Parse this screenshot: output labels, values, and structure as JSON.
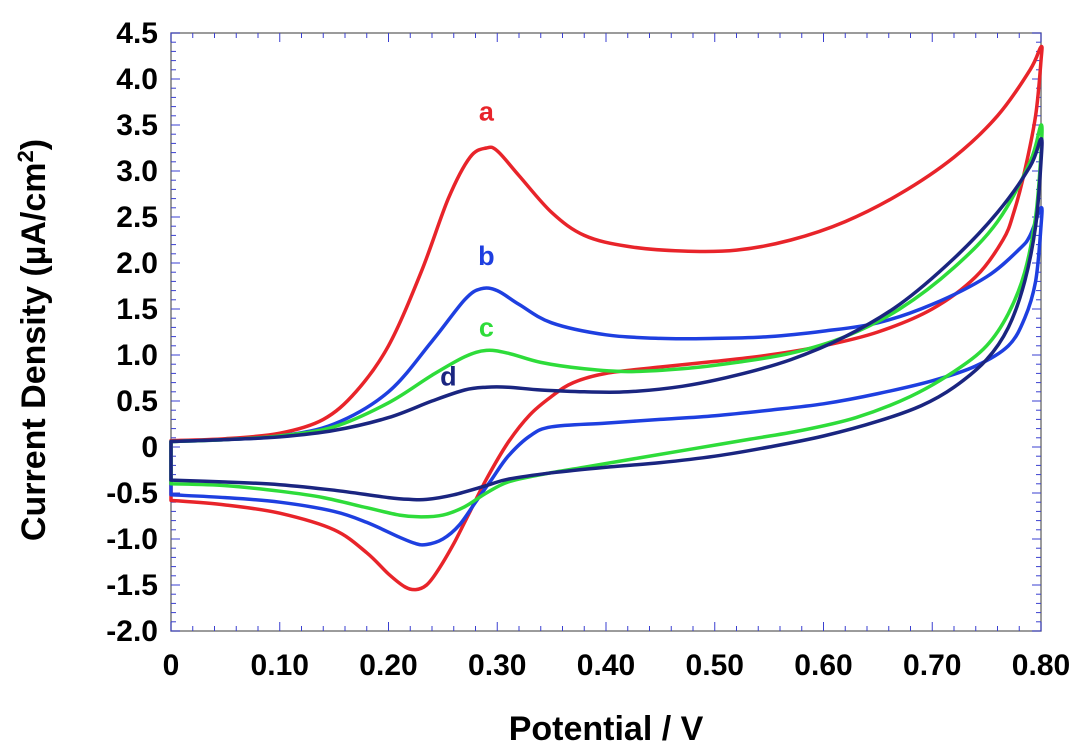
{
  "chart_data": {
    "type": "line",
    "xlabel": "Potential / V",
    "ylabel": "Current Density (µA/cm",
    "ylabel_sup": "2",
    "ylabel_end": ")",
    "xlim": [
      0,
      0.8
    ],
    "ylim": [
      -2.0,
      4.5
    ],
    "xticks": [
      {
        "value": 0,
        "label": "0"
      },
      {
        "value": 0.1,
        "label": "0.10"
      },
      {
        "value": 0.2,
        "label": "0.20"
      },
      {
        "value": 0.3,
        "label": "0.30"
      },
      {
        "value": 0.4,
        "label": "0.40"
      },
      {
        "value": 0.5,
        "label": "0.50"
      },
      {
        "value": 0.6,
        "label": "0.60"
      },
      {
        "value": 0.7,
        "label": "0.70"
      },
      {
        "value": 0.8,
        "label": "0.80"
      }
    ],
    "yticks": [
      {
        "value": 4.5,
        "label": "4.5"
      },
      {
        "value": 4.0,
        "label": "4.0"
      },
      {
        "value": 3.5,
        "label": "3.5"
      },
      {
        "value": 3.0,
        "label": "3.0"
      },
      {
        "value": 2.5,
        "label": "2.5"
      },
      {
        "value": 2.0,
        "label": "2.0"
      },
      {
        "value": 1.5,
        "label": "1.5"
      },
      {
        "value": 1.0,
        "label": "1.0"
      },
      {
        "value": 0.5,
        "label": "0.5"
      },
      {
        "value": 0,
        "label": "0"
      },
      {
        "value": -0.5,
        "label": "-0.5"
      },
      {
        "value": -1.0,
        "label": "-1.0"
      },
      {
        "value": -1.5,
        "label": "-1.5"
      },
      {
        "value": -2.0,
        "label": "-2.0"
      }
    ],
    "grid": false,
    "series": [
      {
        "label": "a",
        "label_pos": [
          0.29,
          3.55
        ],
        "color": "#e8242a",
        "points": [
          [
            0.0,
            0.07
          ],
          [
            0.05,
            0.09
          ],
          [
            0.1,
            0.15
          ],
          [
            0.14,
            0.3
          ],
          [
            0.17,
            0.6
          ],
          [
            0.2,
            1.1
          ],
          [
            0.23,
            1.9
          ],
          [
            0.255,
            2.7
          ],
          [
            0.275,
            3.15
          ],
          [
            0.29,
            3.25
          ],
          [
            0.3,
            3.22
          ],
          [
            0.32,
            2.95
          ],
          [
            0.35,
            2.55
          ],
          [
            0.38,
            2.3
          ],
          [
            0.42,
            2.18
          ],
          [
            0.47,
            2.13
          ],
          [
            0.52,
            2.14
          ],
          [
            0.57,
            2.25
          ],
          [
            0.62,
            2.45
          ],
          [
            0.67,
            2.75
          ],
          [
            0.72,
            3.15
          ],
          [
            0.76,
            3.6
          ],
          [
            0.79,
            4.1
          ],
          [
            0.8,
            4.35
          ],
          [
            0.8,
            4.2
          ],
          [
            0.795,
            3.6
          ],
          [
            0.785,
            3.0
          ],
          [
            0.775,
            2.55
          ],
          [
            0.765,
            2.25
          ],
          [
            0.74,
            1.85
          ],
          [
            0.7,
            1.5
          ],
          [
            0.65,
            1.25
          ],
          [
            0.6,
            1.1
          ],
          [
            0.55,
            1.0
          ],
          [
            0.5,
            0.93
          ],
          [
            0.45,
            0.87
          ],
          [
            0.4,
            0.8
          ],
          [
            0.37,
            0.7
          ],
          [
            0.35,
            0.55
          ],
          [
            0.33,
            0.35
          ],
          [
            0.31,
            0.05
          ],
          [
            0.29,
            -0.35
          ],
          [
            0.275,
            -0.7
          ],
          [
            0.26,
            -1.05
          ],
          [
            0.245,
            -1.35
          ],
          [
            0.235,
            -1.5
          ],
          [
            0.225,
            -1.55
          ],
          [
            0.215,
            -1.52
          ],
          [
            0.2,
            -1.38
          ],
          [
            0.18,
            -1.15
          ],
          [
            0.15,
            -0.9
          ],
          [
            0.1,
            -0.72
          ],
          [
            0.05,
            -0.63
          ],
          [
            0.0,
            -0.58
          ]
        ]
      },
      {
        "label": "b",
        "label_pos": [
          0.29,
          1.98
        ],
        "color": "#1e3fe0",
        "points": [
          [
            0.0,
            0.06
          ],
          [
            0.05,
            0.08
          ],
          [
            0.1,
            0.12
          ],
          [
            0.15,
            0.25
          ],
          [
            0.2,
            0.6
          ],
          [
            0.24,
            1.15
          ],
          [
            0.27,
            1.6
          ],
          [
            0.285,
            1.72
          ],
          [
            0.3,
            1.7
          ],
          [
            0.32,
            1.55
          ],
          [
            0.35,
            1.35
          ],
          [
            0.4,
            1.22
          ],
          [
            0.45,
            1.18
          ],
          [
            0.5,
            1.18
          ],
          [
            0.55,
            1.2
          ],
          [
            0.6,
            1.26
          ],
          [
            0.65,
            1.35
          ],
          [
            0.7,
            1.55
          ],
          [
            0.75,
            1.85
          ],
          [
            0.78,
            2.15
          ],
          [
            0.79,
            2.3
          ],
          [
            0.8,
            2.6
          ],
          [
            0.8,
            2.4
          ],
          [
            0.795,
            1.8
          ],
          [
            0.785,
            1.4
          ],
          [
            0.77,
            1.1
          ],
          [
            0.74,
            0.88
          ],
          [
            0.7,
            0.72
          ],
          [
            0.65,
            0.58
          ],
          [
            0.6,
            0.47
          ],
          [
            0.55,
            0.4
          ],
          [
            0.5,
            0.34
          ],
          [
            0.45,
            0.3
          ],
          [
            0.4,
            0.26
          ],
          [
            0.35,
            0.22
          ],
          [
            0.33,
            0.12
          ],
          [
            0.31,
            -0.1
          ],
          [
            0.295,
            -0.35
          ],
          [
            0.28,
            -0.6
          ],
          [
            0.265,
            -0.85
          ],
          [
            0.25,
            -1.0
          ],
          [
            0.235,
            -1.06
          ],
          [
            0.225,
            -1.05
          ],
          [
            0.21,
            -0.98
          ],
          [
            0.18,
            -0.82
          ],
          [
            0.15,
            -0.7
          ],
          [
            0.1,
            -0.6
          ],
          [
            0.05,
            -0.55
          ],
          [
            0.0,
            -0.52
          ]
        ]
      },
      {
        "label": "c",
        "label_pos": [
          0.29,
          1.2
        ],
        "color": "#2edc3a",
        "points": [
          [
            0.0,
            0.06
          ],
          [
            0.05,
            0.08
          ],
          [
            0.1,
            0.12
          ],
          [
            0.15,
            0.22
          ],
          [
            0.2,
            0.48
          ],
          [
            0.24,
            0.78
          ],
          [
            0.27,
            0.98
          ],
          [
            0.29,
            1.05
          ],
          [
            0.31,
            1.02
          ],
          [
            0.34,
            0.92
          ],
          [
            0.38,
            0.85
          ],
          [
            0.42,
            0.82
          ],
          [
            0.47,
            0.85
          ],
          [
            0.52,
            0.92
          ],
          [
            0.57,
            1.02
          ],
          [
            0.62,
            1.2
          ],
          [
            0.67,
            1.5
          ],
          [
            0.72,
            1.95
          ],
          [
            0.76,
            2.45
          ],
          [
            0.79,
            3.1
          ],
          [
            0.8,
            3.5
          ],
          [
            0.8,
            3.2
          ],
          [
            0.795,
            2.5
          ],
          [
            0.785,
            1.9
          ],
          [
            0.77,
            1.45
          ],
          [
            0.75,
            1.1
          ],
          [
            0.72,
            0.82
          ],
          [
            0.68,
            0.55
          ],
          [
            0.63,
            0.32
          ],
          [
            0.58,
            0.18
          ],
          [
            0.53,
            0.08
          ],
          [
            0.48,
            -0.02
          ],
          [
            0.43,
            -0.12
          ],
          [
            0.38,
            -0.22
          ],
          [
            0.34,
            -0.3
          ],
          [
            0.31,
            -0.38
          ],
          [
            0.29,
            -0.5
          ],
          [
            0.27,
            -0.65
          ],
          [
            0.25,
            -0.74
          ],
          [
            0.23,
            -0.76
          ],
          [
            0.21,
            -0.74
          ],
          [
            0.18,
            -0.66
          ],
          [
            0.14,
            -0.55
          ],
          [
            0.1,
            -0.48
          ],
          [
            0.05,
            -0.42
          ],
          [
            0.0,
            -0.4
          ]
        ]
      },
      {
        "label": "d",
        "label_pos": [
          0.255,
          0.67
        ],
        "color": "#1a2580",
        "points": [
          [
            0.0,
            0.06
          ],
          [
            0.05,
            0.08
          ],
          [
            0.1,
            0.11
          ],
          [
            0.15,
            0.18
          ],
          [
            0.2,
            0.32
          ],
          [
            0.24,
            0.5
          ],
          [
            0.27,
            0.62
          ],
          [
            0.29,
            0.65
          ],
          [
            0.31,
            0.65
          ],
          [
            0.34,
            0.62
          ],
          [
            0.38,
            0.6
          ],
          [
            0.42,
            0.6
          ],
          [
            0.47,
            0.66
          ],
          [
            0.52,
            0.78
          ],
          [
            0.57,
            0.95
          ],
          [
            0.62,
            1.2
          ],
          [
            0.67,
            1.55
          ],
          [
            0.72,
            2.05
          ],
          [
            0.76,
            2.55
          ],
          [
            0.79,
            3.05
          ],
          [
            0.8,
            3.35
          ],
          [
            0.8,
            3.1
          ],
          [
            0.795,
            2.4
          ],
          [
            0.785,
            1.8
          ],
          [
            0.77,
            1.3
          ],
          [
            0.75,
            0.95
          ],
          [
            0.72,
            0.65
          ],
          [
            0.69,
            0.45
          ],
          [
            0.65,
            0.28
          ],
          [
            0.6,
            0.12
          ],
          [
            0.55,
            0.0
          ],
          [
            0.5,
            -0.1
          ],
          [
            0.45,
            -0.17
          ],
          [
            0.4,
            -0.22
          ],
          [
            0.35,
            -0.28
          ],
          [
            0.31,
            -0.35
          ],
          [
            0.29,
            -0.42
          ],
          [
            0.26,
            -0.52
          ],
          [
            0.235,
            -0.57
          ],
          [
            0.22,
            -0.57
          ],
          [
            0.2,
            -0.55
          ],
          [
            0.15,
            -0.47
          ],
          [
            0.1,
            -0.41
          ],
          [
            0.05,
            -0.38
          ],
          [
            0.0,
            -0.36
          ]
        ]
      }
    ]
  }
}
